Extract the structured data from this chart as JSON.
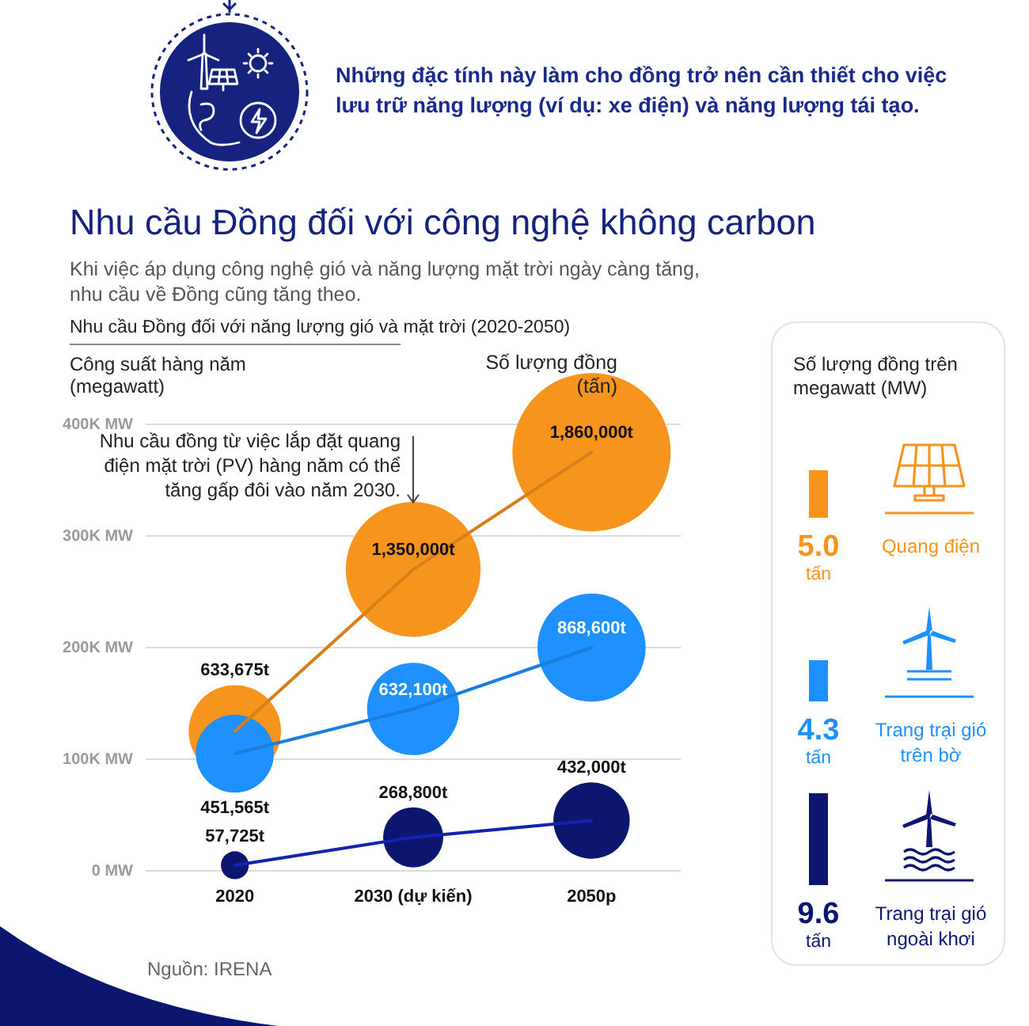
{
  "chart_data": [
    {
      "type": "bubble",
      "title": "Nhu cầu Đồng đối với công nghệ không carbon",
      "subtitle": "Khi việc áp dụng công nghệ gió và năng lượng mặt trời ngày càng tăng, nhu cầu về Đồng cũng tăng theo.",
      "ylabel": "Công suất hàng năm (megawatt)",
      "categories": [
        "2020",
        "2030 (dự kiến)",
        "2050p"
      ],
      "series": [
        {
          "color": "#f7941d",
          "values": [
            125000,
            270000,
            375000
          ],
          "sizes": [
            633675,
            1350000,
            1860000
          ],
          "value_labels": [
            "633,675t",
            "1,350,000t",
            "1,860,000t"
          ]
        },
        {
          "color": "#1e90ff",
          "values": [
            105000,
            145000,
            200000
          ],
          "sizes": [
            451565,
            632100,
            868600
          ],
          "value_labels": [
            "451,565t",
            "632,100t",
            "868,600t"
          ]
        },
        {
          "color": "#0c166e",
          "values": [
            5000,
            30000,
            45000
          ],
          "sizes": [
            57725,
            268800,
            432000
          ],
          "value_labels": [
            "57,725t",
            "268,800t",
            "432,000t"
          ]
        }
      ],
      "ylim": [
        0,
        400000
      ],
      "yticks": [
        {
          "value": 0,
          "label": "0 MW"
        },
        {
          "value": 100000,
          "label": "100K MW"
        },
        {
          "value": 200000,
          "label": "200K MW"
        },
        {
          "value": 300000,
          "label": "300K MW"
        },
        {
          "value": 400000,
          "label": "400K MW"
        }
      ],
      "grid": "y",
      "line_style": "solid",
      "annotations": [
        "Những đặc tính này làm cho đồng trở nên cần thiết cho việc lưu trữ năng lượng (ví dụ: xe điện) và năng lượng tái tạo.",
        "Nhu cầu Đồng đối với năng lượng gió và mặt trời (2020-2050)",
        "Số lượng đồng (tấn)",
        {
          "text": "Nhu cầu đồng từ việc lắp đặt quang điện mặt trời (PV) hàng năm có thể tăng gấp đôi vào năm 2030.",
          "x": "2030 (dự kiến)",
          "y": 330000
        },
        "Nguồn: IRENA"
      ]
    },
    {
      "type": "other",
      "title": "Số lượng đồng trên megawatt (MW)",
      "categories": [
        "Quang điện",
        "Trang trại gió trên bờ",
        "Trang trại gió ngoài khơi"
      ],
      "values": [
        5.0,
        4.3,
        9.6
      ],
      "value_labels": [
        "5.0 tấn",
        "4.3 tấn",
        "9.6 tấn"
      ],
      "colors": [
        "#f7941d",
        "#1e90ff",
        "#0c166e"
      ]
    }
  ]
}
